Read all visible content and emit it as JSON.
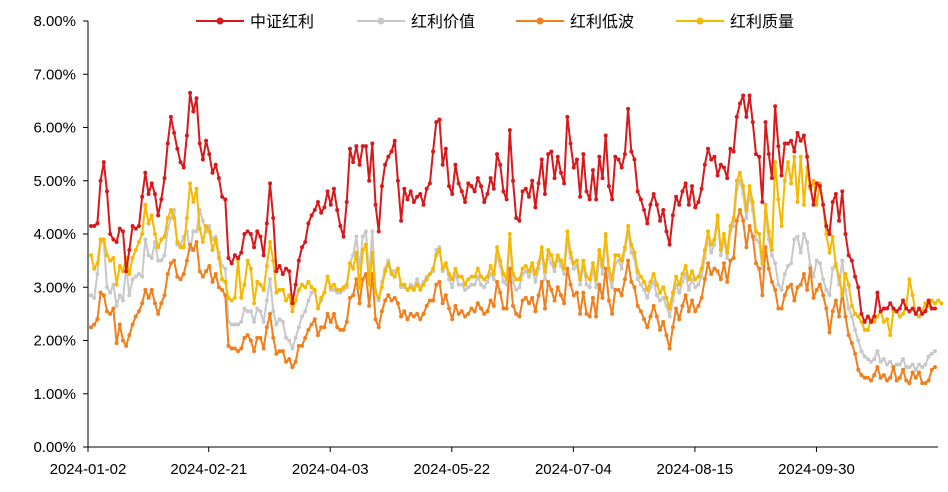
{
  "chart_data": {
    "type": "line",
    "title": "",
    "xlabel": "",
    "ylabel": "",
    "ylim": [
      0,
      8
    ],
    "y_unit": "%",
    "y_ticks": [
      "0.00%",
      "1.00%",
      "2.00%",
      "3.00%",
      "4.00%",
      "5.00%",
      "6.00%",
      "7.00%",
      "8.00%"
    ],
    "x_ticks": [
      "2024-01-02",
      "2024-02-21",
      "2024-04-03",
      "2024-05-22",
      "2024-07-04",
      "2024-08-15",
      "2024-09-30"
    ],
    "grid": false,
    "legend_position": "top",
    "series": [
      {
        "name": "中证红利",
        "color": "#d7191c",
        "values": [
          4.15,
          4.15,
          4.2,
          5.0,
          5.35,
          4.8,
          4.0,
          3.9,
          3.85,
          4.1,
          4.05,
          3.3,
          3.7,
          4.15,
          4.1,
          4.15,
          4.7,
          5.15,
          4.75,
          4.95,
          4.75,
          4.35,
          4.65,
          5.05,
          5.7,
          6.2,
          5.9,
          5.6,
          5.35,
          5.25,
          5.85,
          6.65,
          6.3,
          6.55,
          5.7,
          5.4,
          5.75,
          5.5,
          5.15,
          5.3,
          5.05,
          4.7,
          4.65,
          3.55,
          3.45,
          3.6,
          3.55,
          3.65,
          4.0,
          4.05,
          4.0,
          3.75,
          4.05,
          3.95,
          3.6,
          4.2,
          4.95,
          4.3,
          3.3,
          3.4,
          3.25,
          3.35,
          3.3,
          2.7,
          3.05,
          3.5,
          3.75,
          3.85,
          4.2,
          4.35,
          4.45,
          4.6,
          4.4,
          4.5,
          4.8,
          4.55,
          4.85,
          4.45,
          4.15,
          3.95,
          4.6,
          5.6,
          5.35,
          5.65,
          5.3,
          5.65,
          5.65,
          5.0,
          5.7,
          4.55,
          4.05,
          4.9,
          5.3,
          5.45,
          5.55,
          5.75,
          5.0,
          4.25,
          4.85,
          4.65,
          4.8,
          4.6,
          4.7,
          4.75,
          4.55,
          4.85,
          4.95,
          5.55,
          6.1,
          6.15,
          5.3,
          5.6,
          4.9,
          4.75,
          5.3,
          4.95,
          4.8,
          4.6,
          4.95,
          4.9,
          4.8,
          5.05,
          4.9,
          4.6,
          4.75,
          5.05,
          4.85,
          5.5,
          5.3,
          4.8,
          4.65,
          5.95,
          5.0,
          4.3,
          4.25,
          4.8,
          4.85,
          4.7,
          5.0,
          4.5,
          4.95,
          5.4,
          4.75,
          5.5,
          5.55,
          5.05,
          5.45,
          5.15,
          4.95,
          6.2,
          5.7,
          5.25,
          5.4,
          4.7,
          5.5,
          4.8,
          4.65,
          5.2,
          4.65,
          5.45,
          5.05,
          5.85,
          4.9,
          4.65,
          5.45,
          5.4,
          5.25,
          5.5,
          6.35,
          5.55,
          5.4,
          4.8,
          4.65,
          4.45,
          4.2,
          4.55,
          4.75,
          4.55,
          4.25,
          4.45,
          4.05,
          3.8,
          4.35,
          4.7,
          4.55,
          4.8,
          4.95,
          4.55,
          4.9,
          4.5,
          4.6,
          4.85,
          5.3,
          5.6,
          5.4,
          5.45,
          5.1,
          5.3,
          5.25,
          5.05,
          5.6,
          5.55,
          6.2,
          6.45,
          6.6,
          6.2,
          6.6,
          6.1,
          5.5,
          5.45,
          4.6,
          6.1,
          5.5,
          5.05,
          6.4,
          5.65,
          5.1,
          5.7,
          5.7,
          5.75,
          5.55,
          5.9,
          5.75,
          5.85,
          5.45,
          4.9,
          4.55,
          4.95,
          4.9,
          4.55,
          4.15,
          4.0,
          4.6,
          4.75,
          4.25,
          4.8,
          4.0,
          3.6,
          3.5,
          3.2,
          3.0,
          2.5,
          2.35,
          2.45,
          2.35,
          2.45,
          2.9,
          2.55,
          2.6,
          2.6,
          2.7,
          2.6,
          2.55,
          2.6,
          2.75,
          2.6,
          2.55,
          2.6,
          2.5,
          2.6,
          2.5,
          2.55,
          2.75,
          2.6,
          2.6
        ]
      },
      {
        "name": "红利价值",
        "color": "#c8c8c8",
        "values": [
          2.85,
          2.8,
          3.25,
          3.85,
          3.85,
          3.0,
          2.9,
          3.05,
          2.65,
          2.85,
          2.75,
          3.4,
          2.85,
          3.15,
          3.2,
          3.25,
          3.2,
          3.9,
          3.6,
          3.55,
          3.85,
          3.5,
          3.5,
          3.6,
          4.1,
          4.3,
          4.45,
          3.8,
          3.8,
          3.95,
          4.05,
          3.7,
          4.05,
          4.05,
          4.45,
          4.25,
          4.05,
          4.15,
          3.9,
          3.95,
          3.65,
          3.4,
          3.35,
          2.35,
          2.3,
          2.3,
          2.3,
          2.35,
          2.6,
          2.55,
          2.55,
          2.35,
          2.6,
          2.55,
          2.35,
          2.75,
          3.15,
          2.55,
          2.3,
          2.4,
          2.35,
          2.05,
          2.0,
          1.85,
          2.05,
          2.25,
          2.45,
          2.55,
          2.75,
          2.9,
          2.95,
          2.6,
          2.75,
          2.9,
          3.2,
          2.95,
          2.95,
          2.9,
          2.9,
          2.95,
          3.0,
          3.45,
          3.6,
          3.95,
          3.35,
          3.95,
          4.05,
          3.2,
          4.05,
          2.95,
          2.75,
          3.1,
          3.35,
          3.5,
          3.3,
          3.3,
          3.35,
          3.0,
          3.0,
          2.95,
          3.05,
          3.0,
          3.15,
          3.0,
          3.1,
          3.2,
          3.25,
          3.3,
          3.7,
          3.75,
          3.3,
          3.45,
          3.15,
          3.0,
          3.25,
          3.05,
          3.05,
          2.95,
          3.0,
          3.05,
          3.05,
          3.2,
          3.05,
          3.0,
          3.1,
          3.25,
          3.15,
          3.6,
          3.4,
          3.1,
          3.05,
          3.9,
          3.1,
          2.95,
          3.0,
          3.25,
          3.3,
          3.2,
          3.35,
          3.1,
          3.35,
          3.65,
          3.15,
          3.6,
          3.45,
          3.3,
          3.55,
          3.4,
          3.25,
          3.9,
          3.55,
          3.35,
          3.4,
          3.05,
          3.4,
          3.05,
          3.0,
          3.35,
          3.0,
          3.6,
          3.25,
          3.95,
          3.2,
          3.0,
          3.45,
          3.5,
          3.35,
          3.7,
          4.05,
          3.65,
          3.55,
          3.15,
          3.05,
          2.95,
          2.8,
          3.0,
          3.1,
          2.85,
          2.75,
          2.8,
          2.65,
          2.45,
          2.75,
          3.05,
          2.9,
          3.1,
          3.25,
          2.95,
          3.15,
          3.0,
          3.05,
          3.2,
          3.55,
          3.9,
          3.65,
          3.8,
          4.3,
          3.6,
          3.9,
          3.55,
          4.05,
          4.15,
          4.85,
          5.0,
          4.75,
          4.3,
          4.75,
          4.45,
          3.9,
          3.85,
          3.35,
          4.4,
          3.9,
          3.6,
          3.45,
          3.05,
          2.95,
          3.25,
          3.4,
          3.45,
          3.9,
          3.95,
          3.65,
          4.0,
          3.85,
          3.4,
          3.2,
          3.5,
          3.45,
          3.15,
          2.95,
          2.85,
          3.35,
          3.45,
          3.05,
          3.5,
          2.95,
          2.6,
          2.45,
          2.2,
          2.0,
          1.8,
          1.7,
          1.65,
          1.6,
          1.65,
          1.8,
          1.6,
          1.65,
          1.55,
          1.6,
          1.5,
          1.55,
          1.55,
          1.65,
          1.5,
          1.5,
          1.55,
          1.45,
          1.55,
          1.5,
          1.55,
          1.7,
          1.75,
          1.8
        ]
      },
      {
        "name": "红利低波",
        "color": "#f07f1d",
        "values": [
          2.25,
          2.3,
          2.4,
          2.9,
          2.85,
          2.55,
          2.5,
          2.6,
          1.95,
          2.3,
          2.0,
          1.9,
          2.1,
          2.3,
          2.45,
          2.55,
          2.7,
          2.95,
          2.8,
          2.95,
          2.7,
          2.5,
          2.7,
          2.85,
          3.25,
          3.45,
          3.5,
          3.2,
          3.15,
          3.25,
          3.5,
          3.8,
          3.7,
          3.85,
          3.3,
          3.2,
          3.3,
          3.4,
          3.1,
          3.25,
          3.0,
          2.95,
          2.85,
          1.9,
          1.85,
          1.85,
          1.8,
          1.85,
          2.05,
          2.1,
          2.0,
          1.8,
          2.05,
          2.05,
          1.85,
          2.25,
          2.5,
          2.05,
          1.75,
          1.8,
          1.8,
          1.6,
          1.65,
          1.5,
          1.6,
          1.9,
          1.9,
          2.05,
          2.2,
          2.3,
          2.4,
          2.1,
          2.25,
          2.25,
          2.5,
          2.35,
          2.5,
          2.25,
          2.2,
          2.2,
          2.35,
          2.8,
          2.85,
          3.15,
          2.7,
          3.15,
          3.25,
          2.65,
          3.25,
          2.4,
          2.25,
          2.55,
          2.75,
          2.85,
          2.75,
          2.8,
          2.7,
          2.45,
          2.55,
          2.4,
          2.5,
          2.45,
          2.5,
          2.4,
          2.5,
          2.65,
          2.75,
          2.75,
          3.05,
          3.1,
          2.7,
          2.85,
          2.6,
          2.4,
          2.65,
          2.5,
          2.55,
          2.45,
          2.5,
          2.6,
          2.55,
          2.7,
          2.6,
          2.5,
          2.55,
          2.75,
          2.65,
          3.1,
          2.9,
          2.6,
          2.6,
          3.35,
          2.65,
          2.5,
          2.45,
          2.75,
          2.8,
          2.7,
          2.8,
          2.55,
          2.85,
          3.1,
          2.6,
          3.1,
          2.95,
          2.75,
          3.0,
          2.85,
          2.7,
          3.35,
          3.05,
          2.85,
          2.9,
          2.5,
          2.9,
          2.5,
          2.45,
          2.8,
          2.45,
          3.05,
          2.8,
          3.35,
          2.75,
          2.5,
          2.95,
          2.95,
          2.85,
          3.15,
          3.5,
          3.1,
          3.0,
          2.65,
          2.55,
          2.4,
          2.25,
          2.45,
          2.65,
          2.45,
          2.2,
          2.35,
          2.1,
          1.85,
          2.25,
          2.6,
          2.4,
          2.65,
          2.85,
          2.55,
          2.75,
          2.55,
          2.65,
          2.8,
          3.15,
          3.45,
          3.25,
          3.35,
          3.3,
          3.15,
          3.45,
          3.1,
          3.5,
          3.55,
          4.25,
          4.45,
          4.25,
          3.75,
          4.15,
          3.95,
          3.45,
          3.35,
          2.85,
          3.75,
          3.35,
          3.1,
          2.95,
          2.6,
          2.6,
          2.85,
          3.0,
          3.05,
          2.75,
          3.0,
          3.05,
          3.25,
          2.95,
          3.35,
          2.8,
          2.95,
          3.05,
          2.85,
          2.6,
          2.15,
          2.55,
          2.75,
          2.45,
          2.9,
          2.45,
          2.1,
          1.95,
          1.75,
          1.45,
          1.35,
          1.3,
          1.3,
          1.25,
          1.35,
          1.5,
          1.3,
          1.35,
          1.25,
          1.3,
          1.5,
          1.25,
          1.3,
          1.45,
          1.25,
          1.2,
          1.4,
          1.3,
          1.4,
          1.2,
          1.2,
          1.25,
          1.45,
          1.5
        ]
      },
      {
        "name": "红利质量",
        "color": "#f7b800",
        "values": [
          3.6,
          3.35,
          3.45,
          3.9,
          3.9,
          3.6,
          3.5,
          3.55,
          3.05,
          3.4,
          3.3,
          3.55,
          3.25,
          3.55,
          3.7,
          3.85,
          4.0,
          4.55,
          4.2,
          4.35,
          4.0,
          3.75,
          3.9,
          3.95,
          4.3,
          4.45,
          4.3,
          3.85,
          3.75,
          3.75,
          4.3,
          4.95,
          4.6,
          4.85,
          4.1,
          3.85,
          4.15,
          4.05,
          3.7,
          3.9,
          3.55,
          3.15,
          3.1,
          2.8,
          2.75,
          2.8,
          3.5,
          2.8,
          3.05,
          3.5,
          3.35,
          2.7,
          3.1,
          3.05,
          2.95,
          3.4,
          3.85,
          3.5,
          2.9,
          2.95,
          2.95,
          2.75,
          2.85,
          2.55,
          2.75,
          2.95,
          3.05,
          3.0,
          3.1,
          3.0,
          2.95,
          2.6,
          2.8,
          2.9,
          3.2,
          3.0,
          3.05,
          2.95,
          2.95,
          3.0,
          3.05,
          3.45,
          3.35,
          3.65,
          3.0,
          3.7,
          3.8,
          3.05,
          3.65,
          2.9,
          2.8,
          3.0,
          3.3,
          3.45,
          3.25,
          3.2,
          3.35,
          3.05,
          3.05,
          2.95,
          3.0,
          2.95,
          3.05,
          2.95,
          3.05,
          3.15,
          3.25,
          3.35,
          3.6,
          3.7,
          3.35,
          3.45,
          3.25,
          3.15,
          3.35,
          3.2,
          3.2,
          3.05,
          3.15,
          3.2,
          3.2,
          3.35,
          3.2,
          3.15,
          3.2,
          3.4,
          3.25,
          3.75,
          3.5,
          3.25,
          3.15,
          4.0,
          3.25,
          3.15,
          3.15,
          3.35,
          3.4,
          3.3,
          3.45,
          3.25,
          3.45,
          3.75,
          3.3,
          3.7,
          3.6,
          3.4,
          3.6,
          3.5,
          3.35,
          4.05,
          3.65,
          3.45,
          3.5,
          3.15,
          3.5,
          3.2,
          3.15,
          3.45,
          3.15,
          3.7,
          3.4,
          4.0,
          3.35,
          3.15,
          3.6,
          3.6,
          3.5,
          3.75,
          4.15,
          3.8,
          3.65,
          3.3,
          3.2,
          3.1,
          2.95,
          3.1,
          3.25,
          3.05,
          2.9,
          3.0,
          2.8,
          2.6,
          2.9,
          3.2,
          3.05,
          3.25,
          3.4,
          3.15,
          3.3,
          3.15,
          3.2,
          3.35,
          3.7,
          4.05,
          3.8,
          3.9,
          4.35,
          3.7,
          4.0,
          3.65,
          4.15,
          4.3,
          5.0,
          5.15,
          4.9,
          4.45,
          4.9,
          4.6,
          4.05,
          4.0,
          3.45,
          4.55,
          4.05,
          3.7,
          5.35,
          4.65,
          4.15,
          5.0,
          5.35,
          4.95,
          5.45,
          4.6,
          5.45,
          4.55,
          5.25,
          4.85,
          5.0,
          4.55,
          4.95,
          4.55,
          4.0,
          3.65,
          3.95,
          3.4,
          3.2,
          2.85,
          3.25,
          3.05,
          2.65,
          2.5,
          2.45,
          2.35,
          2.2,
          2.2,
          2.4,
          2.35,
          2.45,
          2.55,
          2.35,
          2.4,
          2.1,
          2.55,
          2.55,
          2.45,
          2.5,
          2.65,
          3.15,
          2.85,
          2.5,
          2.45,
          2.55,
          2.7,
          2.65,
          2.75,
          2.7,
          2.75,
          2.7
        ]
      }
    ]
  }
}
